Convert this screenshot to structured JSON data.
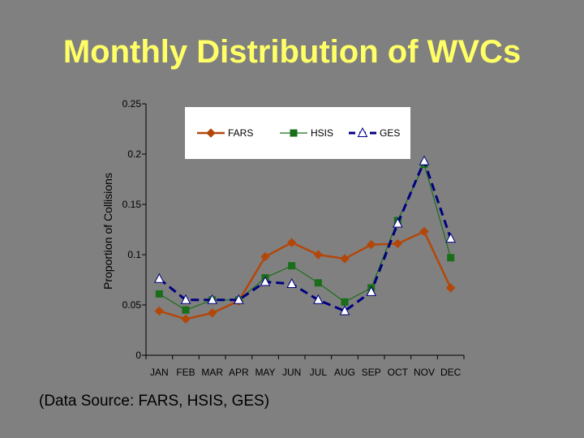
{
  "slide": {
    "title": "Monthly Distribution of WVCs",
    "source": "(Data Source: FARS, HSIS, GES)"
  },
  "chart_data": {
    "type": "line",
    "title": "",
    "xlabel": "",
    "ylabel": "Proportion of Collisions",
    "ylim": [
      0,
      0.25
    ],
    "yticks": [
      0,
      0.05,
      0.1,
      0.15,
      0.2,
      0.25
    ],
    "ytick_labels": [
      "0",
      "0.05",
      "0.1",
      "0.15",
      "0.2",
      "0.25"
    ],
    "categories": [
      "JAN",
      "FEB",
      "MAR",
      "APR",
      "MAY",
      "JUN",
      "JUL",
      "AUG",
      "SEP",
      "OCT",
      "NOV",
      "DEC"
    ],
    "legend_position": "top",
    "series": [
      {
        "name": "FARS",
        "color": "#b3470a",
        "marker": "diamond",
        "dash": "solid",
        "values": [
          0.044,
          0.036,
          0.042,
          0.054,
          0.098,
          0.112,
          0.1,
          0.096,
          0.11,
          0.111,
          0.123,
          0.067
        ]
      },
      {
        "name": "HSIS",
        "color": "#1a6e1a",
        "marker": "square",
        "dash": "solid",
        "values": [
          0.061,
          0.045,
          0.055,
          0.055,
          0.077,
          0.089,
          0.072,
          0.053,
          0.067,
          0.134,
          0.19,
          0.097
        ]
      },
      {
        "name": "GES",
        "color": "#000080",
        "marker": "triangle",
        "dash": "dashed",
        "values": [
          0.076,
          0.055,
          0.055,
          0.055,
          0.073,
          0.071,
          0.055,
          0.044,
          0.063,
          0.131,
          0.193,
          0.116
        ]
      }
    ]
  }
}
